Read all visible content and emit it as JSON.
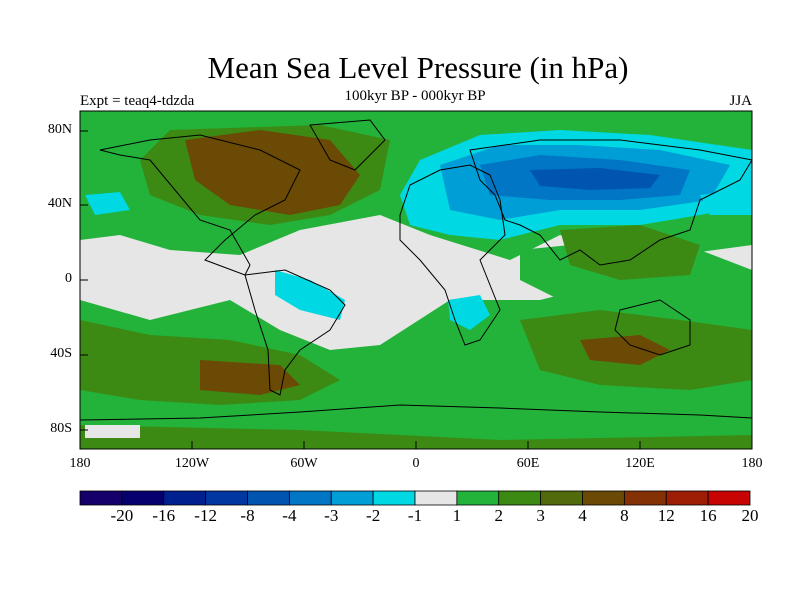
{
  "title": "Mean Sea Level Pressure (in hPa)",
  "subtitle": "100kyr BP - 000kyr BP",
  "experiment_label": "Expt = teaq4-tdzda",
  "season_label": "JJA",
  "y_ticks": [
    "80N",
    "40N",
    "0",
    "40S",
    "80S"
  ],
  "x_ticks": [
    "180",
    "120W",
    "60W",
    "0",
    "60E",
    "120E",
    "180"
  ],
  "colorbar": {
    "labels": [
      "-20",
      "-16",
      "-12",
      "-8",
      "-4",
      "-3",
      "-2",
      "-1",
      "1",
      "2",
      "3",
      "4",
      "8",
      "12",
      "16",
      "20"
    ],
    "colors": [
      "#15006b",
      "#05006e",
      "#00208f",
      "#0037a0",
      "#0055b0",
      "#0076c4",
      "#009ed6",
      "#00d9e3",
      "#e6e6e6",
      "#23b23a",
      "#3c8a14",
      "#516a0b",
      "#6a4a04",
      "#843205",
      "#9e1d05",
      "#c80402"
    ]
  },
  "palette": {
    "neutral": "#e6e6e6",
    "green": "#23b23a",
    "olive": "#3c8a14",
    "dark_olive": "#516a0b",
    "brown": "#6a4a04",
    "cyan": "#00d9e3",
    "light_blue": "#009ed6",
    "blue": "#0076c4",
    "dark_blue": "#0055b0",
    "navy": "#0037a0"
  }
}
